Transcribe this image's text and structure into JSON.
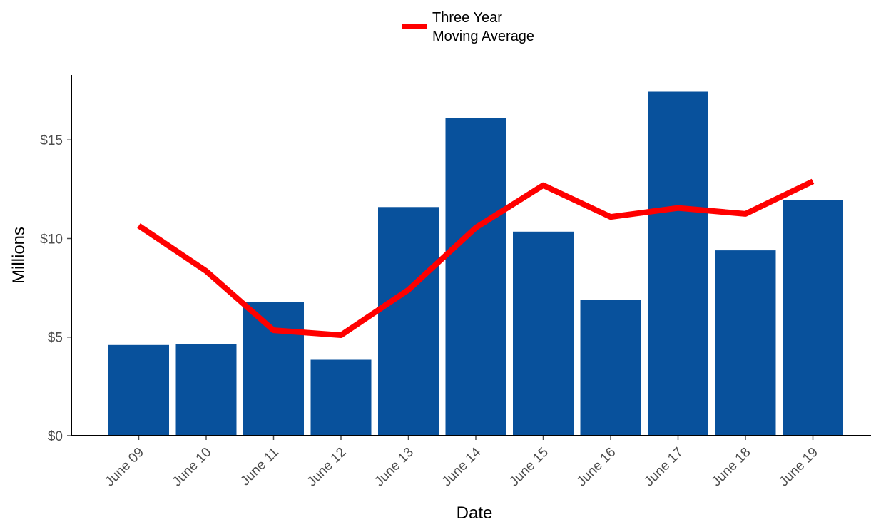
{
  "chart_data": {
    "type": "bar",
    "categories": [
      "June 09",
      "June 10",
      "June 11",
      "June 12",
      "June 13",
      "June 14",
      "June 15",
      "June 16",
      "June 17",
      "June 18",
      "June 19"
    ],
    "series": [
      {
        "type": "bar",
        "values": [
          4.6,
          4.65,
          6.8,
          3.85,
          11.6,
          16.1,
          10.35,
          6.9,
          17.45,
          9.4,
          11.95
        ]
      },
      {
        "type": "line",
        "name": "Three Year Moving Average",
        "values": [
          10.65,
          8.35,
          5.35,
          5.1,
          7.4,
          10.55,
          12.7,
          11.1,
          11.55,
          11.25,
          12.9
        ]
      }
    ],
    "xlabel": "Date",
    "ylabel": "Millions",
    "ylim": [
      0,
      18.3
    ],
    "yticks": [
      0,
      5,
      10,
      15
    ],
    "ytick_labels": [
      "$0",
      "$5",
      "$10",
      "$15"
    ],
    "legend": {
      "position": "top",
      "labels": [
        "Three Year",
        "Moving Average"
      ]
    },
    "grid": false,
    "colors": {
      "bar": "#08519c",
      "line": "#ff0000",
      "axis": "#000000"
    }
  }
}
